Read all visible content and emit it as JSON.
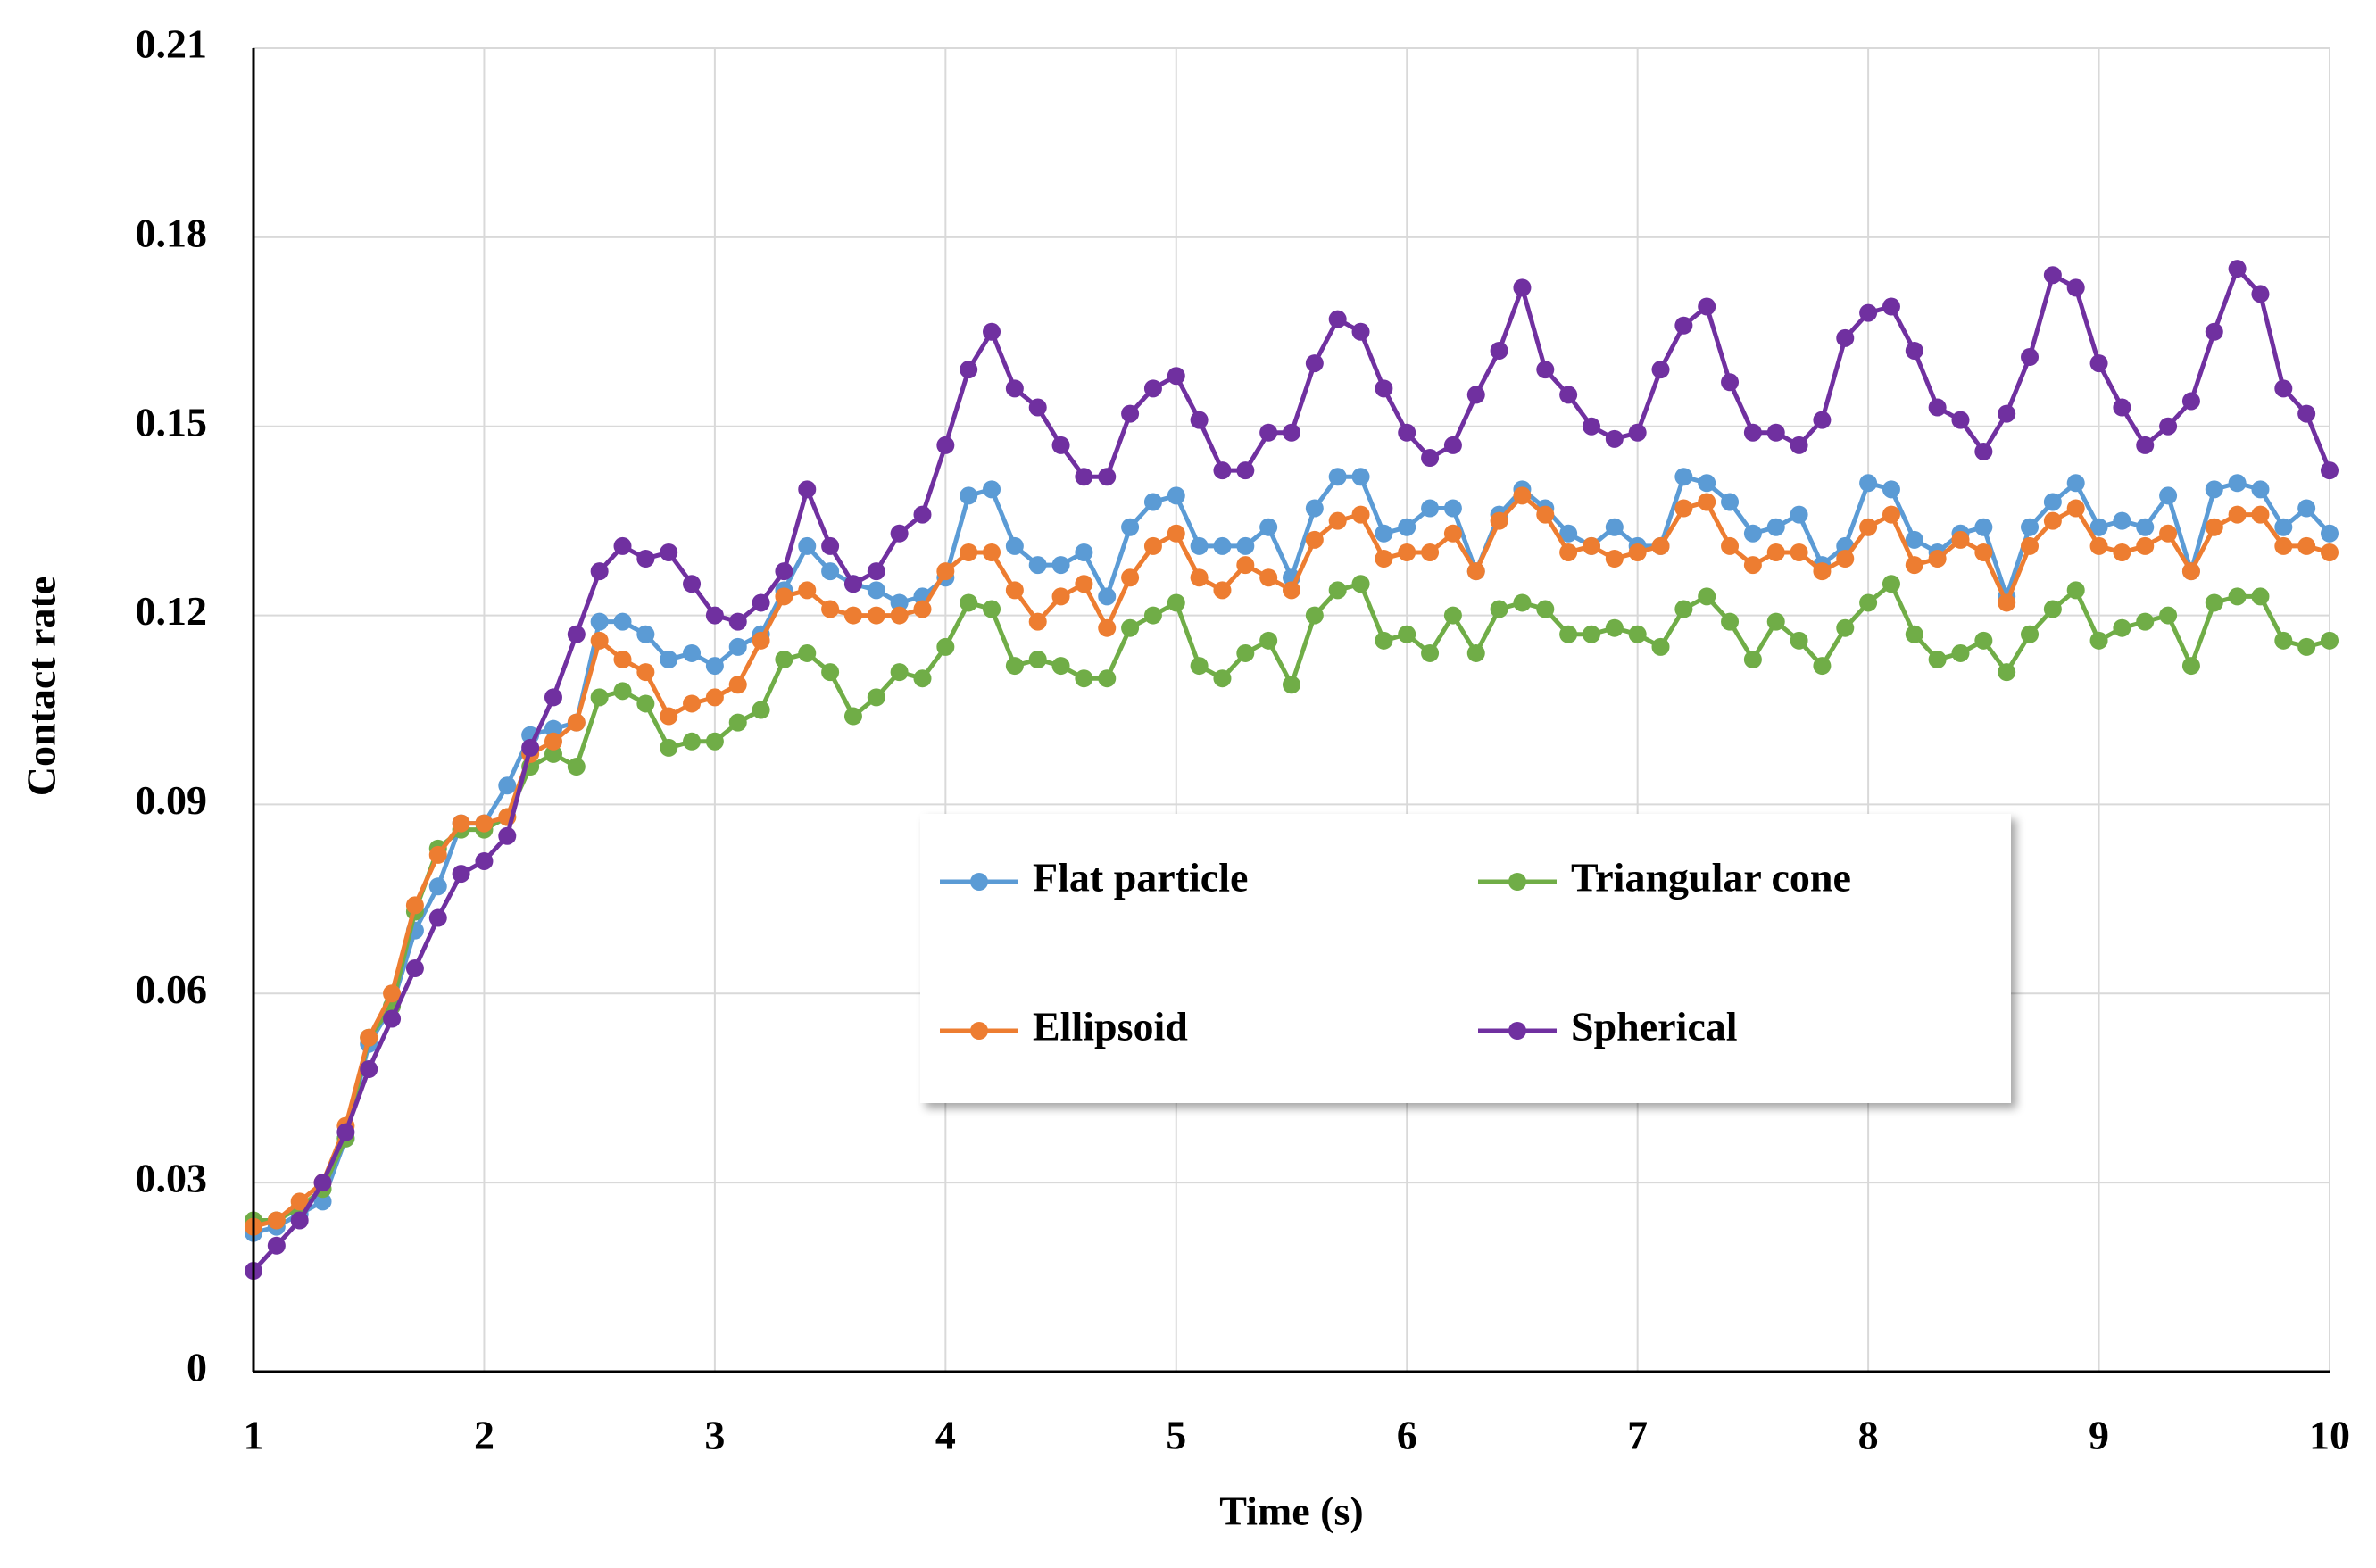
{
  "chart_data": {
    "type": "line",
    "xlabel": "Time (s)",
    "ylabel": "Contact rate",
    "x": [
      1,
      1.1,
      1.2,
      1.3,
      1.4,
      1.5,
      1.6,
      1.7,
      1.8,
      1.9,
      2,
      2.1,
      2.2,
      2.3,
      2.4,
      2.5,
      2.6,
      2.7,
      2.8,
      2.9,
      3,
      3.1,
      3.2,
      3.3,
      3.4,
      3.5,
      3.6,
      3.7,
      3.8,
      3.9,
      4,
      4.1,
      4.2,
      4.3,
      4.4,
      4.5,
      4.6,
      4.7,
      4.8,
      4.9,
      5,
      5.1,
      5.2,
      5.3,
      5.4,
      5.5,
      5.6,
      5.7,
      5.8,
      5.9,
      6,
      6.1,
      6.2,
      6.3,
      6.4,
      6.5,
      6.6,
      6.7,
      6.8,
      6.9,
      7,
      7.1,
      7.2,
      7.3,
      7.4,
      7.5,
      7.6,
      7.7,
      7.8,
      7.9,
      8,
      8.1,
      8.2,
      8.3,
      8.4,
      8.5,
      8.6,
      8.7,
      8.8,
      8.9,
      9,
      9.1,
      9.2,
      9.3,
      9.4,
      9.5,
      9.6,
      9.7,
      9.8,
      9.9,
      10
    ],
    "xlim": [
      1,
      10
    ],
    "xticks": [
      1,
      2,
      3,
      4,
      5,
      6,
      7,
      8,
      9,
      10
    ],
    "ylim": [
      0,
      0.21
    ],
    "yticks": [
      0,
      0.03,
      0.06,
      0.09,
      0.12,
      0.15,
      0.18,
      0.21
    ],
    "grid": true,
    "series": [
      {
        "name": "Flat particle",
        "color": "#5b9bd5",
        "values": [
          0.022,
          0.023,
          0.025,
          0.027,
          0.037,
          0.052,
          0.058,
          0.07,
          0.077,
          0.087,
          0.087,
          0.093,
          0.101,
          0.102,
          0.103,
          0.119,
          0.119,
          0.117,
          0.113,
          0.114,
          0.112,
          0.115,
          0.117,
          0.124,
          0.131,
          0.127,
          0.125,
          0.124,
          0.122,
          0.123,
          0.126,
          0.139,
          0.14,
          0.131,
          0.128,
          0.128,
          0.13,
          0.123,
          0.134,
          0.138,
          0.139,
          0.131,
          0.131,
          0.131,
          0.134,
          0.126,
          0.137,
          0.142,
          0.142,
          0.133,
          0.134,
          0.137,
          0.137,
          0.127,
          0.136,
          0.14,
          0.137,
          0.133,
          0.131,
          0.134,
          0.131,
          0.131,
          0.142,
          0.141,
          0.138,
          0.133,
          0.134,
          0.136,
          0.128,
          0.131,
          0.141,
          0.14,
          0.132,
          0.13,
          0.133,
          0.134,
          0.123,
          0.134,
          0.138,
          0.141,
          0.134,
          0.135,
          0.134,
          0.139,
          0.127,
          0.14,
          0.141,
          0.14,
          0.134,
          0.137,
          0.133
        ]
      },
      {
        "name": "Triangular cone",
        "color": "#70ad47",
        "values": [
          0.024,
          0.024,
          0.026,
          0.029,
          0.037,
          0.053,
          0.058,
          0.073,
          0.083,
          0.086,
          0.086,
          0.088,
          0.096,
          0.098,
          0.096,
          0.107,
          0.108,
          0.106,
          0.099,
          0.1,
          0.1,
          0.103,
          0.105,
          0.113,
          0.114,
          0.111,
          0.104,
          0.107,
          0.111,
          0.11,
          0.115,
          0.122,
          0.121,
          0.112,
          0.113,
          0.112,
          0.11,
          0.11,
          0.118,
          0.12,
          0.122,
          0.112,
          0.11,
          0.114,
          0.116,
          0.109,
          0.12,
          0.124,
          0.125,
          0.116,
          0.117,
          0.114,
          0.12,
          0.114,
          0.121,
          0.122,
          0.121,
          0.117,
          0.117,
          0.118,
          0.117,
          0.115,
          0.121,
          0.123,
          0.119,
          0.113,
          0.119,
          0.116,
          0.112,
          0.118,
          0.122,
          0.125,
          0.117,
          0.113,
          0.114,
          0.116,
          0.111,
          0.117,
          0.121,
          0.124,
          0.116,
          0.118,
          0.119,
          0.12,
          0.112,
          0.122,
          0.123,
          0.123,
          0.116,
          0.115,
          0.116
        ]
      },
      {
        "name": "Ellipsoid",
        "color": "#ed7d31",
        "values": [
          0.023,
          0.024,
          0.027,
          0.03,
          0.039,
          0.053,
          0.06,
          0.074,
          0.082,
          0.087,
          0.087,
          0.088,
          0.098,
          0.1,
          0.103,
          0.116,
          0.113,
          0.111,
          0.104,
          0.106,
          0.107,
          0.109,
          0.116,
          0.123,
          0.124,
          0.121,
          0.12,
          0.12,
          0.12,
          0.121,
          0.127,
          0.13,
          0.13,
          0.124,
          0.119,
          0.123,
          0.125,
          0.118,
          0.126,
          0.131,
          0.133,
          0.126,
          0.124,
          0.128,
          0.126,
          0.124,
          0.132,
          0.135,
          0.136,
          0.129,
          0.13,
          0.13,
          0.133,
          0.127,
          0.135,
          0.139,
          0.136,
          0.13,
          0.131,
          0.129,
          0.13,
          0.131,
          0.137,
          0.138,
          0.131,
          0.128,
          0.13,
          0.13,
          0.127,
          0.129,
          0.134,
          0.136,
          0.128,
          0.129,
          0.132,
          0.13,
          0.122,
          0.131,
          0.135,
          0.137,
          0.131,
          0.13,
          0.131,
          0.133,
          0.127,
          0.134,
          0.136,
          0.136,
          0.131,
          0.131,
          0.13
        ]
      },
      {
        "name": "Spherical",
        "color": "#7030a0",
        "values": [
          0.016,
          0.02,
          0.024,
          0.03,
          0.038,
          0.048,
          0.056,
          0.064,
          0.072,
          0.079,
          0.081,
          0.085,
          0.099,
          0.107,
          0.117,
          0.127,
          0.131,
          0.129,
          0.13,
          0.125,
          0.12,
          0.119,
          0.122,
          0.127,
          0.14,
          0.131,
          0.125,
          0.127,
          0.133,
          0.136,
          0.147,
          0.159,
          0.165,
          0.156,
          0.153,
          0.147,
          0.142,
          0.142,
          0.152,
          0.156,
          0.158,
          0.151,
          0.143,
          0.143,
          0.149,
          0.149,
          0.16,
          0.167,
          0.165,
          0.156,
          0.149,
          0.145,
          0.147,
          0.155,
          0.162,
          0.172,
          0.159,
          0.155,
          0.15,
          0.148,
          0.149,
          0.159,
          0.166,
          0.169,
          0.157,
          0.149,
          0.149,
          0.147,
          0.151,
          0.164,
          0.168,
          0.169,
          0.162,
          0.153,
          0.151,
          0.146,
          0.152,
          0.161,
          0.174,
          0.172,
          0.16,
          0.153,
          0.147,
          0.15,
          0.154,
          0.165,
          0.175,
          0.171,
          0.156,
          0.152,
          0.143
        ]
      }
    ]
  }
}
